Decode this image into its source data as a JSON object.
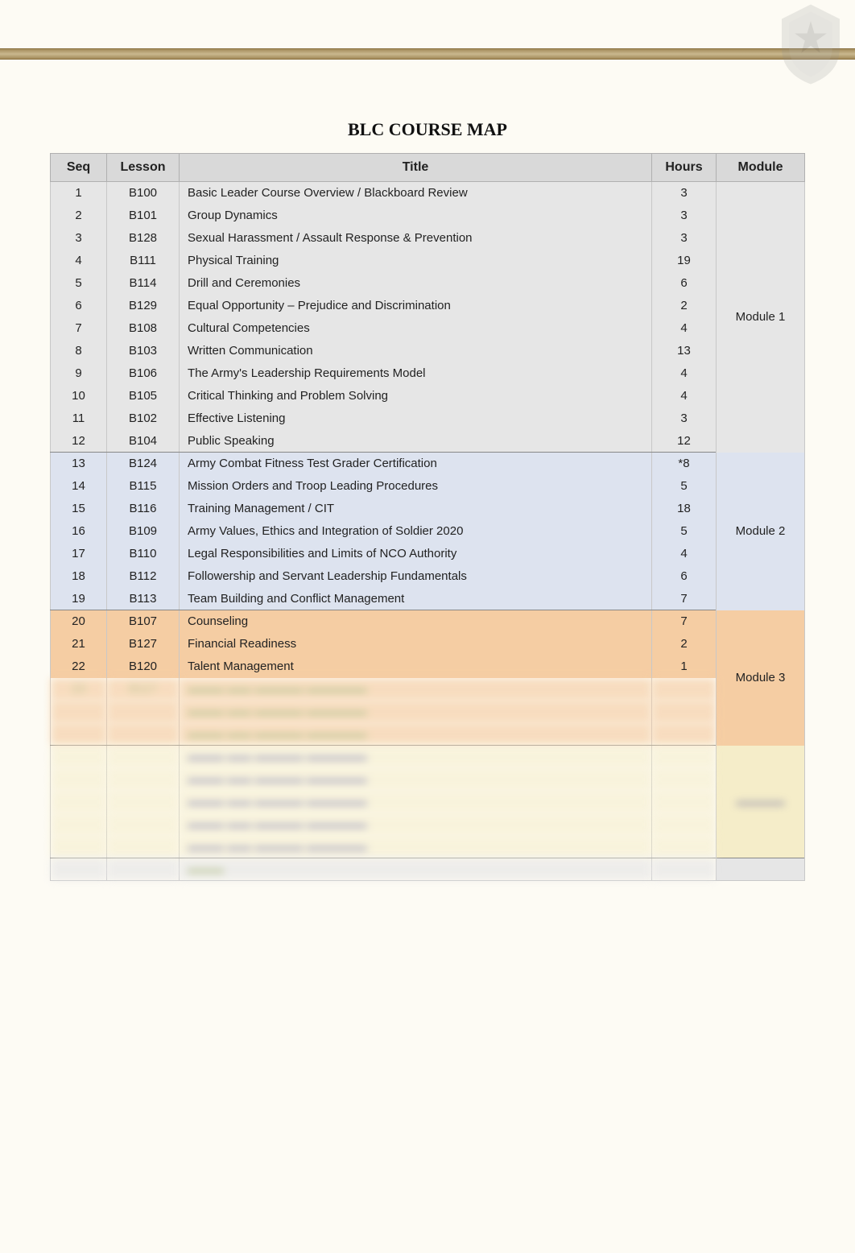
{
  "title": "BLC COURSE MAP",
  "columns": [
    "Seq",
    "Lesson",
    "Title",
    "Hours",
    "Module"
  ],
  "modules": [
    {
      "label": "Module 1",
      "class": "m1",
      "rows": [
        {
          "seq": "1",
          "lesson": "B100",
          "title": "Basic Leader Course Overview / Blackboard Review",
          "hours": "3"
        },
        {
          "seq": "2",
          "lesson": "B101",
          "title": "Group Dynamics",
          "hours": "3"
        },
        {
          "seq": "3",
          "lesson": "B128",
          "title": "Sexual Harassment / Assault Response & Prevention",
          "hours": "3"
        },
        {
          "seq": "4",
          "lesson": "B111",
          "title": "Physical Training",
          "hours": "19"
        },
        {
          "seq": "5",
          "lesson": "B114",
          "title": "Drill and Ceremonies",
          "hours": "6"
        },
        {
          "seq": "6",
          "lesson": "B129",
          "title": "Equal Opportunity – Prejudice and Discrimination",
          "hours": "2"
        },
        {
          "seq": "7",
          "lesson": "B108",
          "title": "Cultural Competencies",
          "hours": "4"
        },
        {
          "seq": "8",
          "lesson": "B103",
          "title": "Written Communication",
          "hours": "13"
        },
        {
          "seq": "9",
          "lesson": "B106",
          "title": "The Army's Leadership Requirements Model",
          "hours": "4"
        },
        {
          "seq": "10",
          "lesson": "B105",
          "title": "Critical Thinking and Problem Solving",
          "hours": "4"
        },
        {
          "seq": "11",
          "lesson": "B102",
          "title": "Effective Listening",
          "hours": "3"
        },
        {
          "seq": "12",
          "lesson": "B104",
          "title": "Public Speaking",
          "hours": "12"
        }
      ]
    },
    {
      "label": "Module 2",
      "class": "m2",
      "rows": [
        {
          "seq": "13",
          "lesson": "B124",
          "title": "Army Combat Fitness Test Grader Certification",
          "hours": "*8"
        },
        {
          "seq": "14",
          "lesson": "B115",
          "title": "Mission Orders and Troop Leading Procedures",
          "hours": "5"
        },
        {
          "seq": "15",
          "lesson": "B116",
          "title": "Training Management / CIT",
          "hours": "18"
        },
        {
          "seq": "16",
          "lesson": "B109",
          "title": "Army Values, Ethics and Integration of Soldier 2020",
          "hours": "5"
        },
        {
          "seq": "17",
          "lesson": "B110",
          "title": "Legal Responsibilities and Limits of NCO Authority",
          "hours": "4"
        },
        {
          "seq": "18",
          "lesson": "B112",
          "title": "Followership and Servant Leadership Fundamentals",
          "hours": "6"
        },
        {
          "seq": "19",
          "lesson": "B113",
          "title": "Team Building and Conflict Management",
          "hours": "7"
        }
      ]
    },
    {
      "label": "Module 3",
      "class": "m3",
      "rows": [
        {
          "seq": "20",
          "lesson": "B107",
          "title": "Counseling",
          "hours": "7"
        },
        {
          "seq": "21",
          "lesson": "B127",
          "title": "Financial Readiness",
          "hours": "2"
        },
        {
          "seq": "22",
          "lesson": "B120",
          "title": "Talent Management",
          "hours": "1"
        },
        {
          "seq": "23",
          "lesson": "B117",
          "title": "",
          "hours": "",
          "blur": true
        },
        {
          "seq": "",
          "lesson": "",
          "title": "",
          "hours": "",
          "blur": true
        },
        {
          "seq": "",
          "lesson": "",
          "title": "",
          "hours": "",
          "blur": true
        }
      ]
    },
    {
      "label": "",
      "class": "m4",
      "rows": [
        {
          "seq": "",
          "lesson": "",
          "title": "",
          "hours": "",
          "blur": true
        },
        {
          "seq": "",
          "lesson": "",
          "title": "",
          "hours": "",
          "blur": true
        },
        {
          "seq": "",
          "lesson": "",
          "title": "",
          "hours": "",
          "blur": true
        },
        {
          "seq": "",
          "lesson": "",
          "title": "",
          "hours": "",
          "blur": true
        },
        {
          "seq": "",
          "lesson": "",
          "title": "",
          "hours": "",
          "blur": true
        }
      ]
    }
  ],
  "totals": {
    "seq": "",
    "lesson": "",
    "title": "",
    "hours": ""
  },
  "colors": {
    "page_bg": "#fdfbf4",
    "header_bg": "#d9d9d9",
    "m1_bg": "#e6e6e6",
    "m2_bg": "#dde3ef",
    "m3_bg": "#f5cda3",
    "m4_bg": "#f5edc9",
    "border": "#c8c8c8",
    "bar": "#b59b63"
  }
}
